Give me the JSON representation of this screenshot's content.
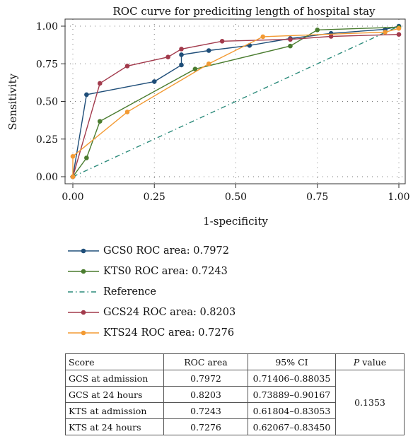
{
  "chart_data": {
    "type": "line",
    "title": "ROC curve for prediciting length of hospital stay",
    "xlabel": "1-specificity",
    "ylabel": "Sensitivity",
    "xlim": [
      0,
      1
    ],
    "ylim": [
      0,
      1
    ],
    "xticks": [
      "0.00",
      "0.25",
      "0.50",
      "0.75",
      "1.00"
    ],
    "yticks": [
      "0.00",
      "0.25",
      "0.50",
      "0.75",
      "1.00"
    ],
    "grid": true,
    "legend_position": "bottom",
    "series": [
      {
        "name": "GCS0 ROC area: 0.7972",
        "color": "#1f4e79",
        "style": "solid",
        "markers": true,
        "points": [
          [
            0.0,
            0.0
          ],
          [
            0.042,
            0.545
          ],
          [
            0.25,
            0.632
          ],
          [
            0.333,
            0.742
          ],
          [
            0.333,
            0.81
          ],
          [
            0.417,
            0.838
          ],
          [
            0.542,
            0.872
          ],
          [
            0.667,
            0.918
          ],
          [
            0.792,
            0.952
          ],
          [
            0.958,
            0.979
          ],
          [
            1.0,
            1.0
          ]
        ]
      },
      {
        "name": "KTS0 ROC area: 0.7243",
        "color": "#4a7c2f",
        "style": "solid",
        "markers": true,
        "points": [
          [
            0.0,
            0.0
          ],
          [
            0.042,
            0.125
          ],
          [
            0.083,
            0.368
          ],
          [
            0.375,
            0.715
          ],
          [
            0.667,
            0.868
          ],
          [
            0.75,
            0.975
          ],
          [
            1.0,
            0.993
          ]
        ]
      },
      {
        "name": "Reference",
        "color": "#2a8a7a",
        "style": "dashdot",
        "markers": false,
        "points": [
          [
            0.0,
            0.0
          ],
          [
            1.0,
            1.0
          ]
        ]
      },
      {
        "name": "GCS24 ROC area: 0.8203",
        "color": "#a23a4c",
        "style": "solid",
        "markers": true,
        "points": [
          [
            0.0,
            0.0
          ],
          [
            0.083,
            0.62
          ],
          [
            0.167,
            0.735
          ],
          [
            0.292,
            0.795
          ],
          [
            0.333,
            0.848
          ],
          [
            0.458,
            0.9
          ],
          [
            0.667,
            0.912
          ],
          [
            0.792,
            0.932
          ],
          [
            1.0,
            0.945
          ]
        ]
      },
      {
        "name": "KTS24 ROC area: 0.7276",
        "color": "#f39a33",
        "style": "solid",
        "markers": true,
        "points": [
          [
            0.0,
            0.0
          ],
          [
            0.0,
            0.135
          ],
          [
            0.167,
            0.43
          ],
          [
            0.417,
            0.75
          ],
          [
            0.583,
            0.93
          ],
          [
            0.958,
            0.96
          ],
          [
            1.0,
            0.985
          ]
        ]
      }
    ]
  },
  "table": {
    "headers": [
      "Score",
      "ROC area",
      "95% CI",
      "value"
    ],
    "p_label": "P",
    "rows": [
      {
        "score": "GCS at admission",
        "area": "0.7972",
        "ci": "0.71406–0.88035"
      },
      {
        "score": "GCS at 24 hours",
        "area": "0.8203",
        "ci": "0.73889–0.90167"
      },
      {
        "score": "KTS at admission",
        "area": "0.7243",
        "ci": "0.61804–0.83053"
      },
      {
        "score": "KTS at 24 hours",
        "area": "0.7276",
        "ci": "0.62067–0.83450"
      }
    ],
    "p_value": "0.1353"
  }
}
